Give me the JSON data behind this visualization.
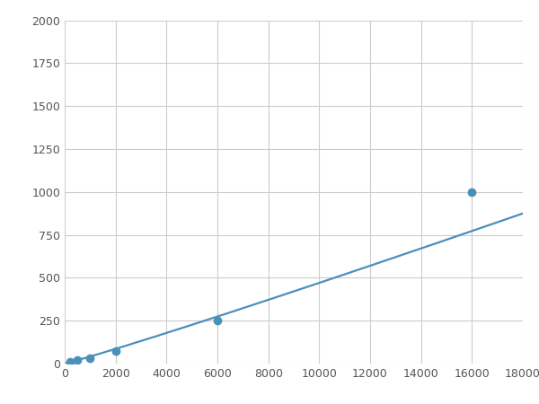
{
  "x": [
    200,
    500,
    1000,
    2000,
    6000,
    16000
  ],
  "y": [
    10,
    20,
    30,
    75,
    250,
    1000
  ],
  "line_color": "#4a90b8",
  "marker_color": "#4a90b8",
  "marker_size": 6,
  "line_width": 1.6,
  "xlim": [
    0,
    18000
  ],
  "ylim": [
    0,
    2000
  ],
  "xticks": [
    0,
    2000,
    4000,
    6000,
    8000,
    10000,
    12000,
    14000,
    16000,
    18000
  ],
  "yticks": [
    0,
    250,
    500,
    750,
    1000,
    1250,
    1500,
    1750,
    2000
  ],
  "grid_color": "#cccccc",
  "bg_color": "#ffffff",
  "fig_bg_color": "#ffffff"
}
